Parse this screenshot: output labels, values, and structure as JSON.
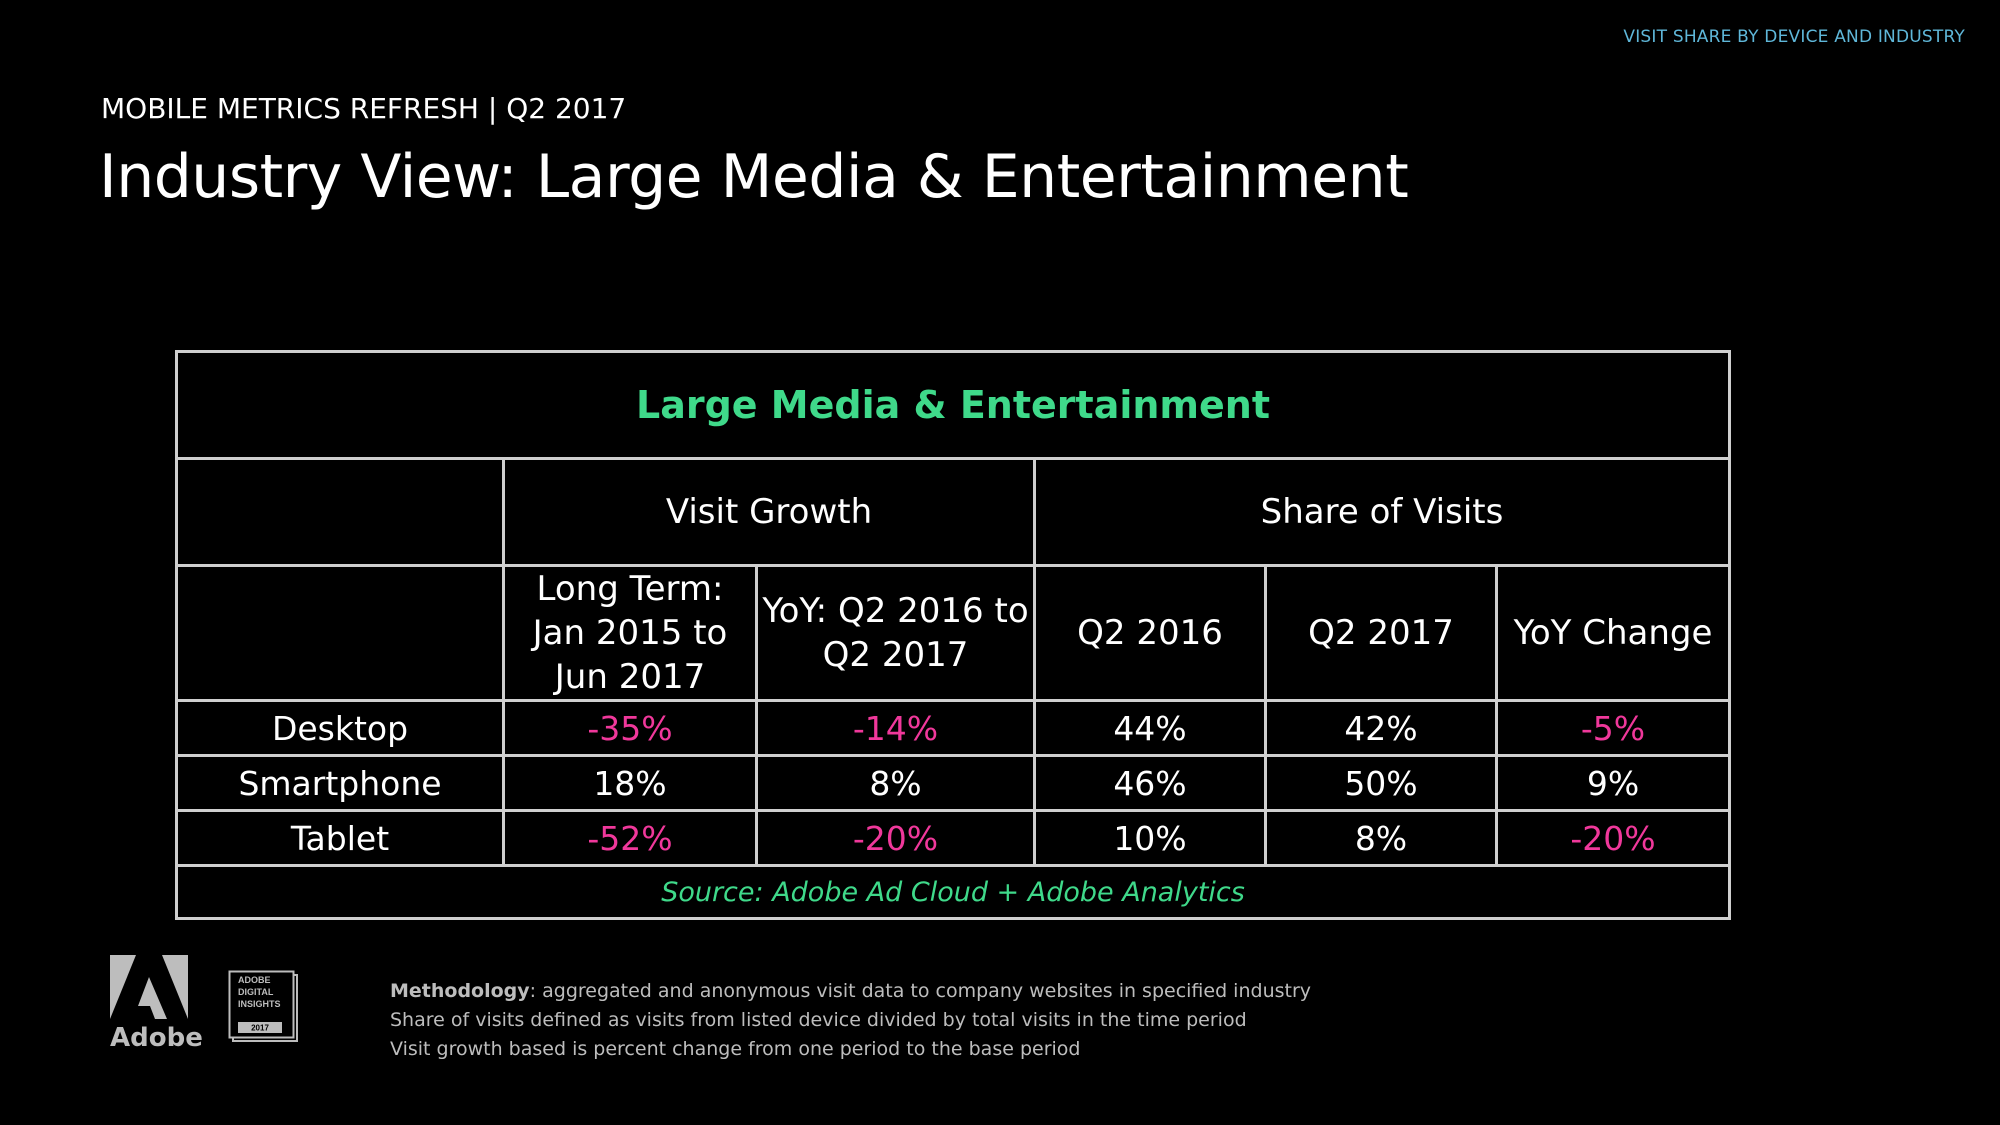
{
  "header": {
    "top_tag": "VISIT SHARE BY DEVICE AND INDUSTRY",
    "kicker": "MOBILE METRICS REFRESH | Q2 2017",
    "title": "Industry View: Large Media & Entertainment"
  },
  "table": {
    "heading": "Large Media & Entertainment",
    "groups": [
      "Visit Growth",
      "Share of Visits"
    ],
    "columns": [
      "Long Term: Jan 2015 to Jun 2017",
      "YoY: Q2 2016 to Q2 2017",
      "Q2 2016",
      "Q2 2017",
      "YoY Change"
    ],
    "rows": [
      {
        "label": "Desktop",
        "cells": [
          "-35%",
          "-14%",
          "44%",
          "42%",
          "-5%"
        ]
      },
      {
        "label": "Smartphone",
        "cells": [
          "18%",
          "8%",
          "46%",
          "50%",
          "9%"
        ]
      },
      {
        "label": "Tablet",
        "cells": [
          "-52%",
          "-20%",
          "10%",
          "8%",
          "-20%"
        ]
      }
    ],
    "source": "Source: Adobe Ad Cloud + Adobe Analytics"
  },
  "colors": {
    "accent_green": "#3fd98a",
    "negative_pink": "#f0389b",
    "tag_blue": "#5fb7d9"
  },
  "logos": {
    "adobe_word": "Adobe",
    "badge_lines": [
      "ADOBE",
      "DIGITAL",
      "INSIGHTS",
      "2017"
    ]
  },
  "methodology": {
    "label": "Methodology",
    "line1": ": aggregated and anonymous visit data to company websites in specified industry",
    "line2": "Share of visits defined as visits from listed device divided by total visits in the time period",
    "line3": "Visit growth based is percent change from one period to the base period"
  }
}
